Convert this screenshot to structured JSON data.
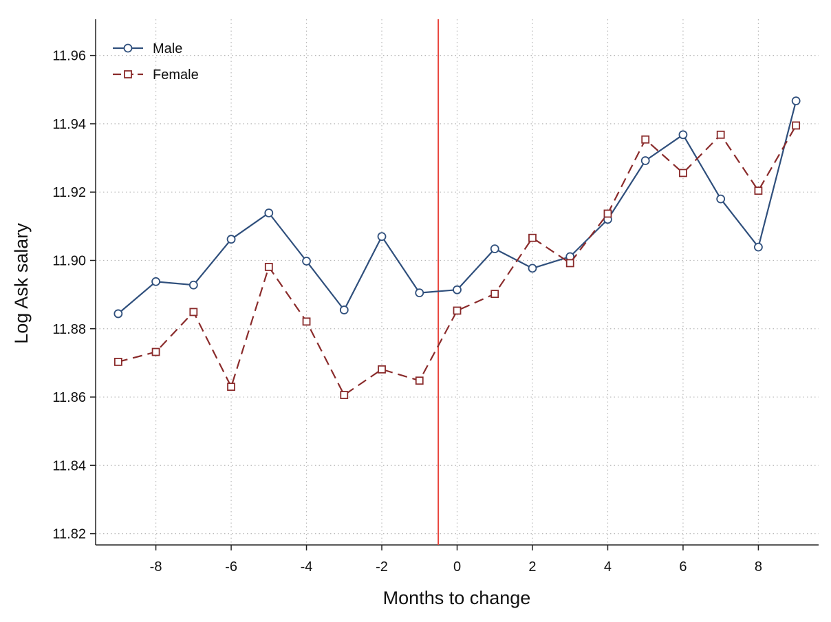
{
  "chart_data": {
    "type": "line",
    "title": "",
    "xlabel": "Months to change",
    "ylabel": "Log Ask salary",
    "x": [
      -9,
      -8,
      -7,
      -6,
      -5,
      -4,
      -3,
      -2,
      -1,
      0,
      1,
      2,
      3,
      4,
      5,
      6,
      7,
      8,
      9
    ],
    "x_ticks": [
      -8,
      -6,
      -4,
      -2,
      0,
      2,
      4,
      6,
      8
    ],
    "y_ticks": [
      11.82,
      11.84,
      11.86,
      11.88,
      11.9,
      11.92,
      11.94,
      11.96
    ],
    "y_tick_labels": [
      "11.82",
      "11.84",
      "11.86",
      "11.88",
      "11.90",
      "11.92",
      "11.94",
      "11.96"
    ],
    "xlim": [
      -9.6,
      9.6
    ],
    "ylim": [
      11.8167,
      11.9706
    ],
    "grid": true,
    "legend_position": "top-left",
    "reference_line": {
      "x": -0.5,
      "color": "#e8433a"
    },
    "series": [
      {
        "name": "Male",
        "color": "#2f4f7c",
        "marker": "circle",
        "line_style": "solid",
        "values": [
          11.8844,
          11.8938,
          11.8928,
          11.9062,
          11.9139,
          11.8998,
          11.8855,
          11.907,
          11.8905,
          11.8914,
          11.9034,
          11.8977,
          11.9011,
          11.912,
          11.9292,
          11.9368,
          11.918,
          11.9039,
          11.9467
        ]
      },
      {
        "name": "Female",
        "color": "#8a2b2b",
        "marker": "square",
        "line_style": "dashed",
        "values": [
          11.8703,
          11.8732,
          11.8849,
          11.863,
          11.8981,
          11.8821,
          11.8606,
          11.8681,
          11.8648,
          11.8853,
          11.8902,
          11.9066,
          11.8992,
          11.9137,
          11.9354,
          11.9256,
          11.9368,
          11.9204,
          11.9395
        ]
      }
    ]
  }
}
